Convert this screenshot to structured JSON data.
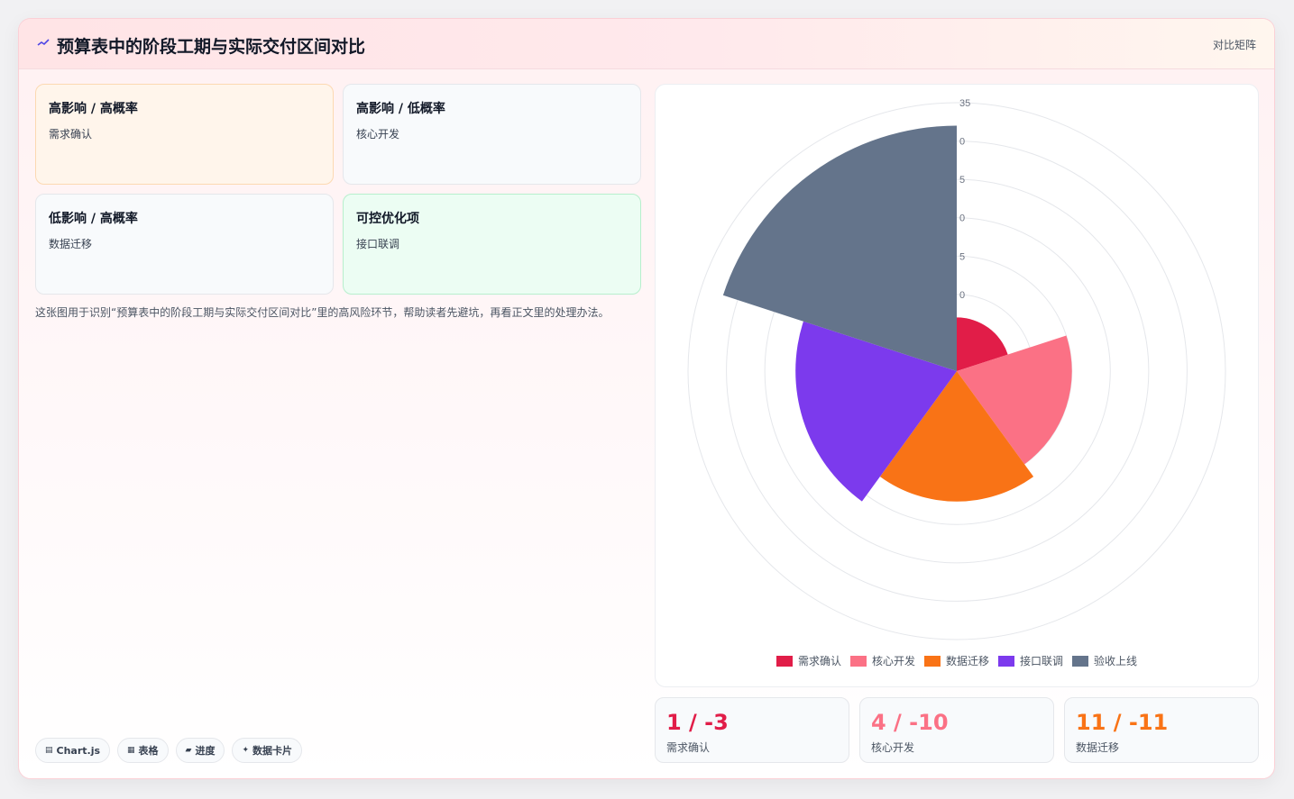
{
  "header": {
    "title": "预算表中的阶段工期与实际交付区间对比",
    "link": "对比矩阵"
  },
  "matrix": [
    {
      "title": "高影响 / 高概率",
      "item": "需求确认"
    },
    {
      "title": "高影响 / 低概率",
      "item": "核心开发"
    },
    {
      "title": "低影响 / 高概率",
      "item": "数据迁移"
    },
    {
      "title": "可控优化项",
      "item": "接口联调"
    }
  ],
  "description": "这张图用于识别“预算表中的阶段工期与实际交付区间对比”里的高风险环节，帮助读者先避坑，再看正文里的处理办法。",
  "pills": [
    {
      "glyph": "▤",
      "label": "Chart.js"
    },
    {
      "glyph": "▦",
      "label": "表格"
    },
    {
      "glyph": "▰",
      "label": "进度"
    },
    {
      "glyph": "✦",
      "label": "数据卡片"
    }
  ],
  "chart_data": {
    "type": "polarArea",
    "categories": [
      "需求确认",
      "核心开发",
      "数据迁移",
      "接口联调",
      "验收上线"
    ],
    "values": [
      7,
      15,
      17,
      21,
      32
    ],
    "colors": [
      "#e11d48",
      "#fb7185",
      "#f97316",
      "#7c3aed",
      "#64748b"
    ],
    "radial_max": 35,
    "radial_ticks": [
      5,
      10,
      15,
      20,
      25,
      30,
      35
    ],
    "tick_labels_visible": [
      "0",
      "5",
      "0",
      "5",
      "0",
      "35"
    ],
    "legend_position": "bottom",
    "grid": true
  },
  "stats": [
    {
      "value": "1 / -3",
      "label": "需求确认",
      "color": "#e11d48"
    },
    {
      "value": "4 / -10",
      "label": "核心开发",
      "color": "#fb7185"
    },
    {
      "value": "11 / -11",
      "label": "数据迁移",
      "color": "#f97316"
    }
  ]
}
